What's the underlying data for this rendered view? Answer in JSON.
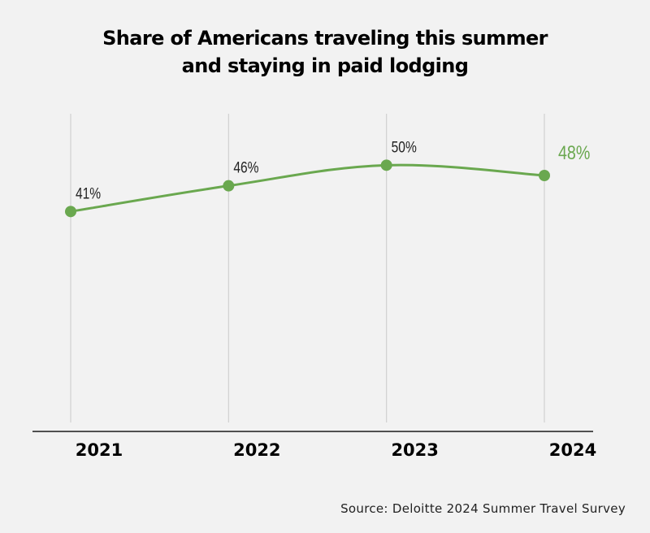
{
  "chart_data": {
    "type": "line",
    "title_lines": [
      "Share of Americans traveling this summer",
      "and staying in paid lodging"
    ],
    "categories": [
      "2021",
      "2022",
      "2023",
      "2024"
    ],
    "series": [
      {
        "name": "Share staying in paid lodging",
        "values": [
          41,
          46,
          50,
          48
        ],
        "unit": "%"
      }
    ],
    "data_labels": [
      "41%",
      "46%",
      "50%",
      "48%"
    ],
    "highlight_index": 3,
    "xlabel": "",
    "ylabel": "",
    "ylim": [
      0,
      60
    ],
    "grid": "vertical",
    "legend": "none",
    "source": "Source: Deloitte 2024 Summer Travel Survey",
    "colors": {
      "line": "#6aa84f",
      "highlight_label": "#6aa84f",
      "label": "#222222",
      "grid": "#d0d0d0",
      "axis": "#1a1a1a",
      "background": "#f2f2f2"
    }
  }
}
